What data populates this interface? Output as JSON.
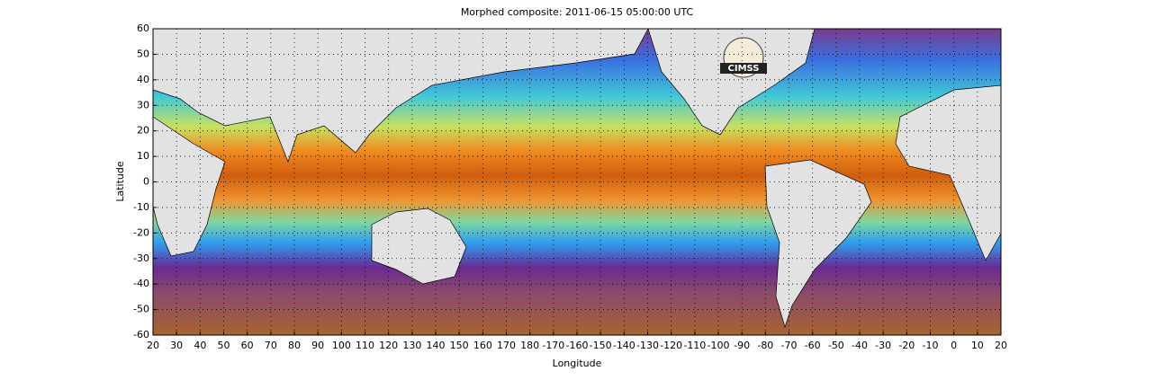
{
  "chart_data": {
    "type": "map",
    "title": "Morphed composite: 2011-06-15 05:00:00 UTC",
    "xlabel": "Longitude",
    "ylabel": "Latitude",
    "logo_text": "CIMSS",
    "xlim": [
      20,
      380
    ],
    "xticks": [
      20,
      30,
      40,
      50,
      60,
      70,
      80,
      90,
      100,
      110,
      120,
      130,
      140,
      150,
      160,
      170,
      180,
      {
        "value": 190,
        "label": "-170"
      },
      {
        "value": 200,
        "label": "-160"
      },
      {
        "value": 210,
        "label": "-150"
      },
      {
        "value": 220,
        "label": "-140"
      },
      {
        "value": 230,
        "label": "-130"
      },
      {
        "value": 240,
        "label": "-120"
      },
      {
        "value": 250,
        "label": "-110"
      },
      {
        "value": 260,
        "label": "-100"
      },
      {
        "value": 270,
        "label": "-90"
      },
      {
        "value": 280,
        "label": "-80"
      },
      {
        "value": 290,
        "label": "-70"
      },
      {
        "value": 300,
        "label": "-60"
      },
      {
        "value": 310,
        "label": "-50"
      },
      {
        "value": 320,
        "label": "-40"
      },
      {
        "value": 330,
        "label": "-30"
      },
      {
        "value": 340,
        "label": "-20"
      },
      {
        "value": 350,
        "label": "-10"
      },
      {
        "value": 360,
        "label": "0"
      },
      {
        "value": 370,
        "label": "10"
      },
      {
        "value": 380,
        "label": "20"
      }
    ],
    "ylim": [
      -60,
      60
    ],
    "yticks": [
      60,
      50,
      40,
      30,
      20,
      10,
      0,
      -10,
      -20,
      -30,
      -40,
      -50,
      -60
    ],
    "grid": true
  }
}
